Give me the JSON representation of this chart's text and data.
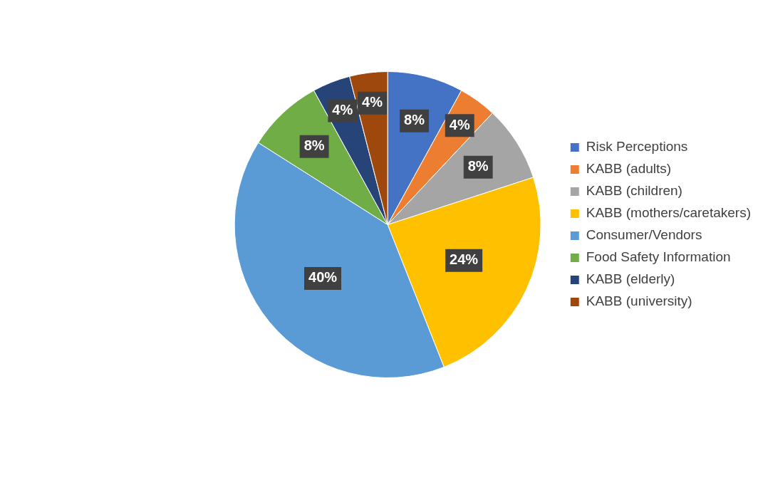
{
  "chart_data": {
    "type": "pie",
    "categories": [
      "Risk Perceptions",
      "KABB (adults)",
      "KABB (children)",
      "KABB (mothers/caretakers)",
      "Consumer/Vendors",
      "Food Safety Information",
      "KABB (elderly)",
      "KABB (university)"
    ],
    "values": [
      8,
      4,
      8,
      24,
      40,
      8,
      4,
      4
    ],
    "colors": [
      "#4472c4",
      "#ed7d31",
      "#a5a5a5",
      "#ffc000",
      "#5b9bd5",
      "#70ad47",
      "#264478",
      "#9e480e"
    ],
    "value_labels": [
      "8%",
      "4%",
      "8%",
      "24%",
      "40%",
      "8%",
      "4%",
      "4%"
    ],
    "legend": "right"
  }
}
